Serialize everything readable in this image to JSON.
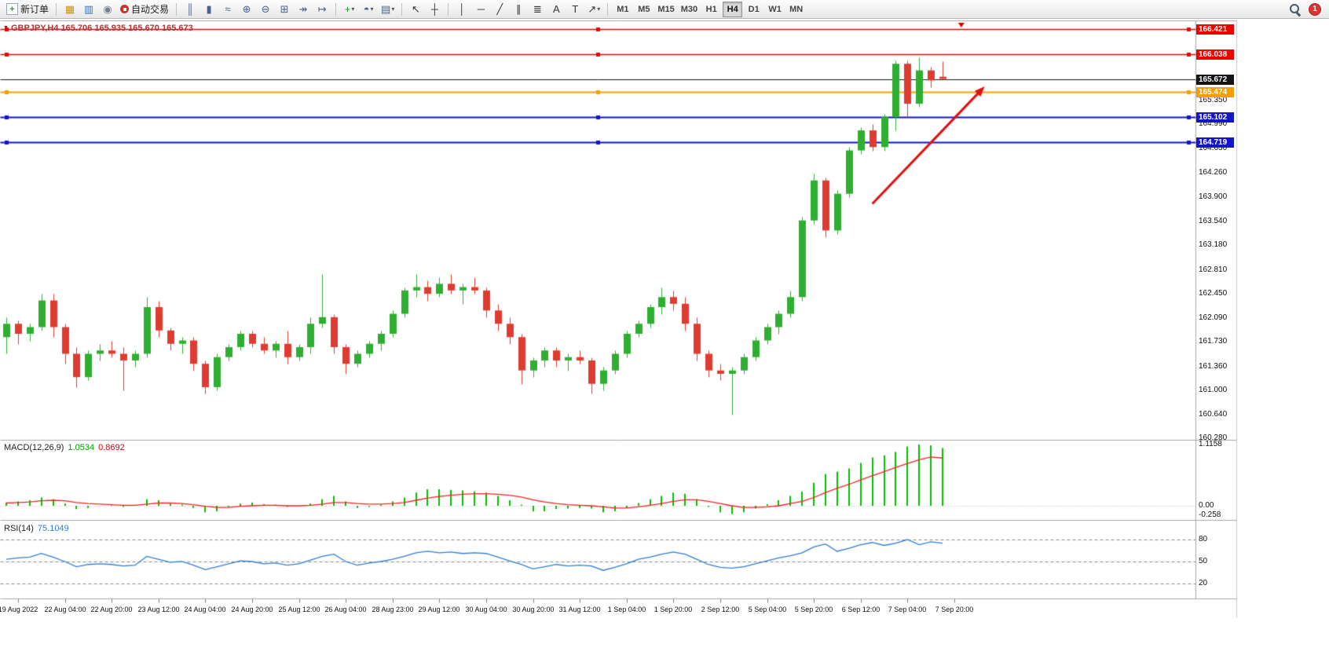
{
  "toolbar": {
    "new_order_label": "新订单",
    "new_order_icon_glyph": "+",
    "algo_trading_label": "自动交易",
    "caret_glyph": "▾",
    "panel_icons": [
      {
        "name": "market-watch",
        "glyph": "▦",
        "color": "#c8931c"
      },
      {
        "name": "data-window",
        "glyph": "▥",
        "color": "#3b6fb3"
      },
      {
        "name": "strategy-tester",
        "glyph": "◉",
        "color": "#6e7f92"
      }
    ],
    "chart_tool_icons": [
      {
        "name": "bar-chart",
        "glyph": "║",
        "color": "#4a618e"
      },
      {
        "name": "candlestick-chart",
        "glyph": "▮",
        "color": "#4a618e"
      },
      {
        "name": "line-chart",
        "glyph": "≈",
        "color": "#4a618e"
      },
      {
        "name": "zoom-in",
        "glyph": "⊕",
        "color": "#4a618e"
      },
      {
        "name": "zoom-out",
        "glyph": "⊖",
        "color": "#4a618e"
      },
      {
        "name": "tile-windows",
        "glyph": "⊞",
        "color": "#4a618e"
      },
      {
        "name": "auto-scroll",
        "glyph": "↠",
        "color": "#4a618e"
      },
      {
        "name": "chart-shift",
        "glyph": "↦",
        "color": "#4a618e"
      }
    ],
    "dropdown_icons": [
      {
        "name": "indicators",
        "glyph": "+",
        "color": "#1e9e33",
        "caret": true
      },
      {
        "name": "periods",
        "glyph": "◓",
        "color": "#4a618e",
        "caret": true
      },
      {
        "name": "templates",
        "glyph": "▤",
        "color": "#4a618e",
        "caret": true
      }
    ],
    "pointer_icons": [
      {
        "name": "cursor",
        "glyph": "↖",
        "color": "#333333"
      },
      {
        "name": "crosshair",
        "glyph": "┼",
        "color": "#333333"
      }
    ],
    "drawing_icons": [
      {
        "name": "vertical-line",
        "glyph": "│",
        "color": "#333333"
      },
      {
        "name": "horizontal-line",
        "glyph": "─",
        "color": "#333333"
      },
      {
        "name": "trendline",
        "glyph": "╱",
        "color": "#333333"
      },
      {
        "name": "equidistant-channel",
        "glyph": "∥",
        "color": "#333333"
      },
      {
        "name": "fibonacci",
        "glyph": "≣",
        "color": "#333333"
      },
      {
        "name": "text",
        "glyph": "A",
        "color": "#333333"
      },
      {
        "name": "label",
        "glyph": "T",
        "color": "#333333"
      },
      {
        "name": "arrows",
        "glyph": "↗",
        "color": "#333333",
        "caret": true
      }
    ],
    "timeframes": [
      "M1",
      "M5",
      "M15",
      "M30",
      "H1",
      "H4",
      "D1",
      "W1",
      "MN"
    ],
    "active_timeframe": "H4",
    "notification_count": "1"
  },
  "chart": {
    "symbol_marker": "▼",
    "header": "GBPJPY,H4 165.706 165.935 165.670 165.673",
    "macd_label": {
      "name": "MACD(12,26,9)",
      "value_main": "1.0534",
      "value_signal": "0.8692"
    },
    "rsi_label": {
      "name": "RSI(14)",
      "value": "75.1049"
    },
    "price_axis_labels": [
      165.35,
      164.99,
      164.63,
      164.26,
      163.9,
      163.54,
      163.18,
      162.81,
      162.45,
      162.09,
      161.73,
      161.36,
      161.0,
      160.64,
      160.28
    ],
    "macd_axis_labels": [
      {
        "text": "1.1158",
        "value": 1.1158
      },
      {
        "text": "0.00",
        "value": 0
      },
      {
        "text": "-0.258",
        "value": -0.258
      }
    ],
    "rsi_axis_labels": [
      {
        "text": "80",
        "value": 80
      },
      {
        "text": "50",
        "value": 50
      },
      {
        "text": "20",
        "value": 20
      }
    ]
  },
  "chart_data": {
    "type": "candlestick",
    "symbol": "GBPJPY",
    "timeframe": "H4",
    "title": "GBPJPY,H4",
    "ohlc_current": {
      "open": 165.706,
      "high": 165.935,
      "low": 165.67,
      "close": 165.673
    },
    "price_range": {
      "min": 160.26,
      "max": 166.55
    },
    "x_labels": [
      "19 Aug 2022",
      "22 Aug 04:00",
      "22 Aug 20:00",
      "23 Aug 12:00",
      "24 Aug 04:00",
      "24 Aug 20:00",
      "25 Aug 12:00",
      "26 Aug 04:00",
      "28 Aug 23:00",
      "29 Aug 12:00",
      "30 Aug 04:00",
      "30 Aug 20:00",
      "31 Aug 12:00",
      "1 Sep 04:00",
      "1 Sep 20:00",
      "2 Sep 12:00",
      "5 Sep 04:00",
      "5 Sep 20:00",
      "6 Sep 12:00",
      "7 Sep 04:00",
      "7 Sep 20:00"
    ],
    "x_label_first_bar": 1,
    "x_label_bar_step": 4,
    "candles": [
      [
        161.8,
        162.1,
        161.55,
        162.0
      ],
      [
        162.0,
        162.05,
        161.7,
        161.85
      ],
      [
        161.85,
        162.0,
        161.75,
        161.95
      ],
      [
        161.95,
        162.45,
        161.9,
        162.35
      ],
      [
        162.35,
        162.45,
        161.8,
        161.95
      ],
      [
        161.95,
        162.0,
        161.4,
        161.55
      ],
      [
        161.55,
        161.65,
        161.05,
        161.2
      ],
      [
        161.2,
        161.6,
        161.15,
        161.55
      ],
      [
        161.55,
        161.7,
        161.45,
        161.6
      ],
      [
        161.6,
        161.75,
        161.5,
        161.55
      ],
      [
        161.55,
        161.65,
        161.0,
        161.45
      ],
      [
        161.45,
        161.6,
        161.35,
        161.55
      ],
      [
        161.55,
        162.4,
        161.5,
        162.25
      ],
      [
        162.25,
        162.35,
        161.8,
        161.9
      ],
      [
        161.9,
        161.95,
        161.6,
        161.7
      ],
      [
        161.7,
        161.8,
        161.55,
        161.75
      ],
      [
        161.75,
        161.8,
        161.3,
        161.4
      ],
      [
        161.4,
        161.45,
        160.95,
        161.05
      ],
      [
        161.05,
        161.55,
        161.0,
        161.5
      ],
      [
        161.5,
        161.7,
        161.45,
        161.65
      ],
      [
        161.65,
        161.9,
        161.6,
        161.85
      ],
      [
        161.85,
        161.9,
        161.65,
        161.7
      ],
      [
        161.7,
        161.8,
        161.55,
        161.6
      ],
      [
        161.6,
        161.75,
        161.5,
        161.7
      ],
      [
        161.7,
        161.9,
        161.4,
        161.5
      ],
      [
        161.5,
        161.7,
        161.45,
        161.65
      ],
      [
        161.65,
        162.1,
        161.55,
        162.0
      ],
      [
        162.0,
        162.75,
        161.95,
        162.1
      ],
      [
        162.1,
        162.15,
        161.55,
        161.65
      ],
      [
        161.65,
        161.7,
        161.25,
        161.4
      ],
      [
        161.4,
        161.6,
        161.35,
        161.55
      ],
      [
        161.55,
        161.75,
        161.5,
        161.7
      ],
      [
        161.7,
        161.9,
        161.6,
        161.85
      ],
      [
        161.85,
        162.2,
        161.8,
        162.15
      ],
      [
        162.15,
        162.55,
        162.1,
        162.5
      ],
      [
        162.5,
        162.75,
        162.4,
        162.55
      ],
      [
        162.55,
        162.65,
        162.35,
        162.45
      ],
      [
        162.45,
        162.7,
        162.4,
        162.6
      ],
      [
        162.6,
        162.75,
        162.45,
        162.5
      ],
      [
        162.5,
        162.6,
        162.3,
        162.55
      ],
      [
        162.55,
        162.7,
        162.45,
        162.5
      ],
      [
        162.5,
        162.55,
        162.1,
        162.2
      ],
      [
        162.2,
        162.3,
        161.9,
        162.0
      ],
      [
        162.0,
        162.1,
        161.7,
        161.8
      ],
      [
        161.8,
        161.85,
        161.1,
        161.3
      ],
      [
        161.3,
        161.5,
        161.2,
        161.45
      ],
      [
        161.45,
        161.65,
        161.35,
        161.6
      ],
      [
        161.6,
        161.65,
        161.35,
        161.45
      ],
      [
        161.45,
        161.55,
        161.3,
        161.5
      ],
      [
        161.5,
        161.6,
        161.4,
        161.45
      ],
      [
        161.45,
        161.5,
        160.95,
        161.1
      ],
      [
        161.1,
        161.35,
        161.0,
        161.3
      ],
      [
        161.3,
        161.6,
        161.25,
        161.55
      ],
      [
        161.55,
        161.9,
        161.5,
        161.85
      ],
      [
        161.85,
        162.05,
        161.8,
        162.0
      ],
      [
        162.0,
        162.3,
        161.95,
        162.25
      ],
      [
        162.25,
        162.55,
        162.15,
        162.4
      ],
      [
        162.4,
        162.5,
        162.2,
        162.3
      ],
      [
        162.3,
        162.4,
        161.9,
        162.0
      ],
      [
        162.0,
        162.1,
        161.45,
        161.55
      ],
      [
        161.55,
        161.6,
        161.2,
        161.3
      ],
      [
        161.3,
        161.4,
        161.15,
        161.25
      ],
      [
        161.25,
        161.35,
        160.64,
        161.3
      ],
      [
        161.3,
        161.55,
        161.25,
        161.5
      ],
      [
        161.5,
        161.8,
        161.45,
        161.75
      ],
      [
        161.75,
        162.0,
        161.7,
        161.95
      ],
      [
        161.95,
        162.2,
        161.85,
        162.15
      ],
      [
        162.15,
        162.5,
        162.1,
        162.4
      ],
      [
        162.4,
        163.6,
        162.35,
        163.55
      ],
      [
        163.55,
        164.25,
        163.5,
        164.15
      ],
      [
        164.15,
        164.2,
        163.3,
        163.4
      ],
      [
        163.4,
        164.0,
        163.35,
        163.95
      ],
      [
        163.95,
        164.65,
        163.9,
        164.6
      ],
      [
        164.6,
        164.95,
        164.55,
        164.9
      ],
      [
        164.9,
        164.99,
        164.6,
        164.65
      ],
      [
        164.65,
        165.15,
        164.6,
        165.1
      ],
      [
        165.1,
        165.95,
        164.9,
        165.9
      ],
      [
        165.9,
        165.95,
        165.1,
        165.3
      ],
      [
        165.3,
        166.0,
        165.25,
        165.8
      ],
      [
        165.8,
        165.85,
        165.55,
        165.65
      ],
      [
        165.706,
        165.935,
        165.67,
        165.673
      ]
    ],
    "horizontal_lines": [
      {
        "price": 166.421,
        "label": "166.421",
        "color": "#f00000",
        "width": 1.5,
        "selected": true
      },
      {
        "price": 166.038,
        "label": "166.038",
        "color": "#f00000",
        "width": 1.5,
        "selected": true
      },
      {
        "price": 165.672,
        "label": "165.672",
        "color": "#151515",
        "width": 1,
        "selected": false,
        "role": "bid"
      },
      {
        "price": 165.474,
        "label": "165.474",
        "color": "#f0a000",
        "width": 2,
        "selected": true
      },
      {
        "price": 165.102,
        "label": "165.102",
        "color": "#1414c8",
        "width": 2,
        "selected": true
      },
      {
        "price": 164.719,
        "label": "164.719",
        "color": "#1414c8",
        "width": 2,
        "selected": true
      }
    ],
    "trend_arrow": {
      "bar_from": 74,
      "price_from": 163.8,
      "bar_to": 83.6,
      "price_to": 165.56,
      "color": "#e01010"
    },
    "shift_marker_bar": 81.6,
    "colors": {
      "up": "#2fae32",
      "down": "#de3c30",
      "macd_histogram": "#00c000",
      "macd_signal": "#ff2020",
      "rsi_line": "#2f7ed8"
    },
    "indicators": {
      "macd": {
        "name": "MACD",
        "params": [
          12,
          26,
          9
        ],
        "current_value": 1.0534,
        "current_signal": 0.8692,
        "scale_max": 1.1158,
        "scale_min": -0.258,
        "histogram": [
          0.06,
          0.08,
          0.1,
          0.15,
          0.12,
          0.04,
          -0.06,
          -0.04,
          0.0,
          0.01,
          -0.02,
          0.0,
          0.12,
          0.1,
          0.04,
          0.02,
          -0.04,
          -0.12,
          -0.1,
          -0.02,
          0.04,
          0.06,
          0.03,
          0.02,
          -0.02,
          0.0,
          0.04,
          0.12,
          0.18,
          0.08,
          -0.04,
          -0.02,
          0.02,
          0.08,
          0.15,
          0.24,
          0.3,
          0.3,
          0.29,
          0.28,
          0.26,
          0.24,
          0.18,
          0.1,
          0.02,
          -0.1,
          -0.1,
          -0.06,
          -0.05,
          -0.04,
          -0.05,
          -0.12,
          -0.1,
          -0.04,
          0.05,
          0.12,
          0.18,
          0.24,
          0.22,
          0.12,
          -0.02,
          -0.12,
          -0.15,
          -0.12,
          -0.05,
          0.03,
          0.1,
          0.18,
          0.26,
          0.42,
          0.58,
          0.62,
          0.68,
          0.78,
          0.88,
          0.92,
          0.98,
          1.08,
          1.1158,
          1.1,
          1.0534
        ],
        "signal": [
          0.05,
          0.06,
          0.07,
          0.09,
          0.1,
          0.09,
          0.06,
          0.04,
          0.03,
          0.02,
          0.01,
          0.01,
          0.03,
          0.05,
          0.05,
          0.04,
          0.02,
          -0.01,
          -0.03,
          -0.03,
          -0.01,
          0.0,
          0.01,
          0.01,
          0.0,
          0.0,
          0.01,
          0.03,
          0.06,
          0.06,
          0.04,
          0.03,
          0.03,
          0.04,
          0.06,
          0.1,
          0.14,
          0.17,
          0.19,
          0.21,
          0.22,
          0.22,
          0.21,
          0.19,
          0.16,
          0.11,
          0.07,
          0.04,
          0.02,
          0.01,
          0.0,
          -0.02,
          -0.04,
          -0.04,
          -0.02,
          0.01,
          0.04,
          0.08,
          0.11,
          0.11,
          0.08,
          0.04,
          0.0,
          -0.03,
          -0.03,
          -0.02,
          0.0,
          0.04,
          0.08,
          0.15,
          0.24,
          0.32,
          0.39,
          0.47,
          0.55,
          0.62,
          0.7,
          0.77,
          0.84,
          0.89,
          0.8692
        ]
      },
      "rsi": {
        "name": "RSI",
        "period": 14,
        "current_value": 75.1049,
        "levels": [
          80,
          50,
          20
        ],
        "values": [
          53,
          55,
          56,
          61,
          56,
          50,
          43,
          46,
          47,
          46,
          44,
          45,
          57,
          53,
          49,
          50,
          45,
          39,
          43,
          47,
          51,
          50,
          47,
          48,
          45,
          47,
          52,
          57,
          60,
          50,
          45,
          48,
          50,
          53,
          57,
          62,
          64,
          62,
          63,
          61,
          62,
          61,
          56,
          51,
          46,
          40,
          43,
          46,
          44,
          45,
          44,
          38,
          42,
          47,
          53,
          56,
          60,
          63,
          60,
          53,
          46,
          42,
          41,
          43,
          47,
          51,
          55,
          58,
          62,
          70,
          74,
          64,
          68,
          73,
          76,
          72,
          75,
          80,
          73,
          77,
          75.1049
        ]
      }
    }
  }
}
